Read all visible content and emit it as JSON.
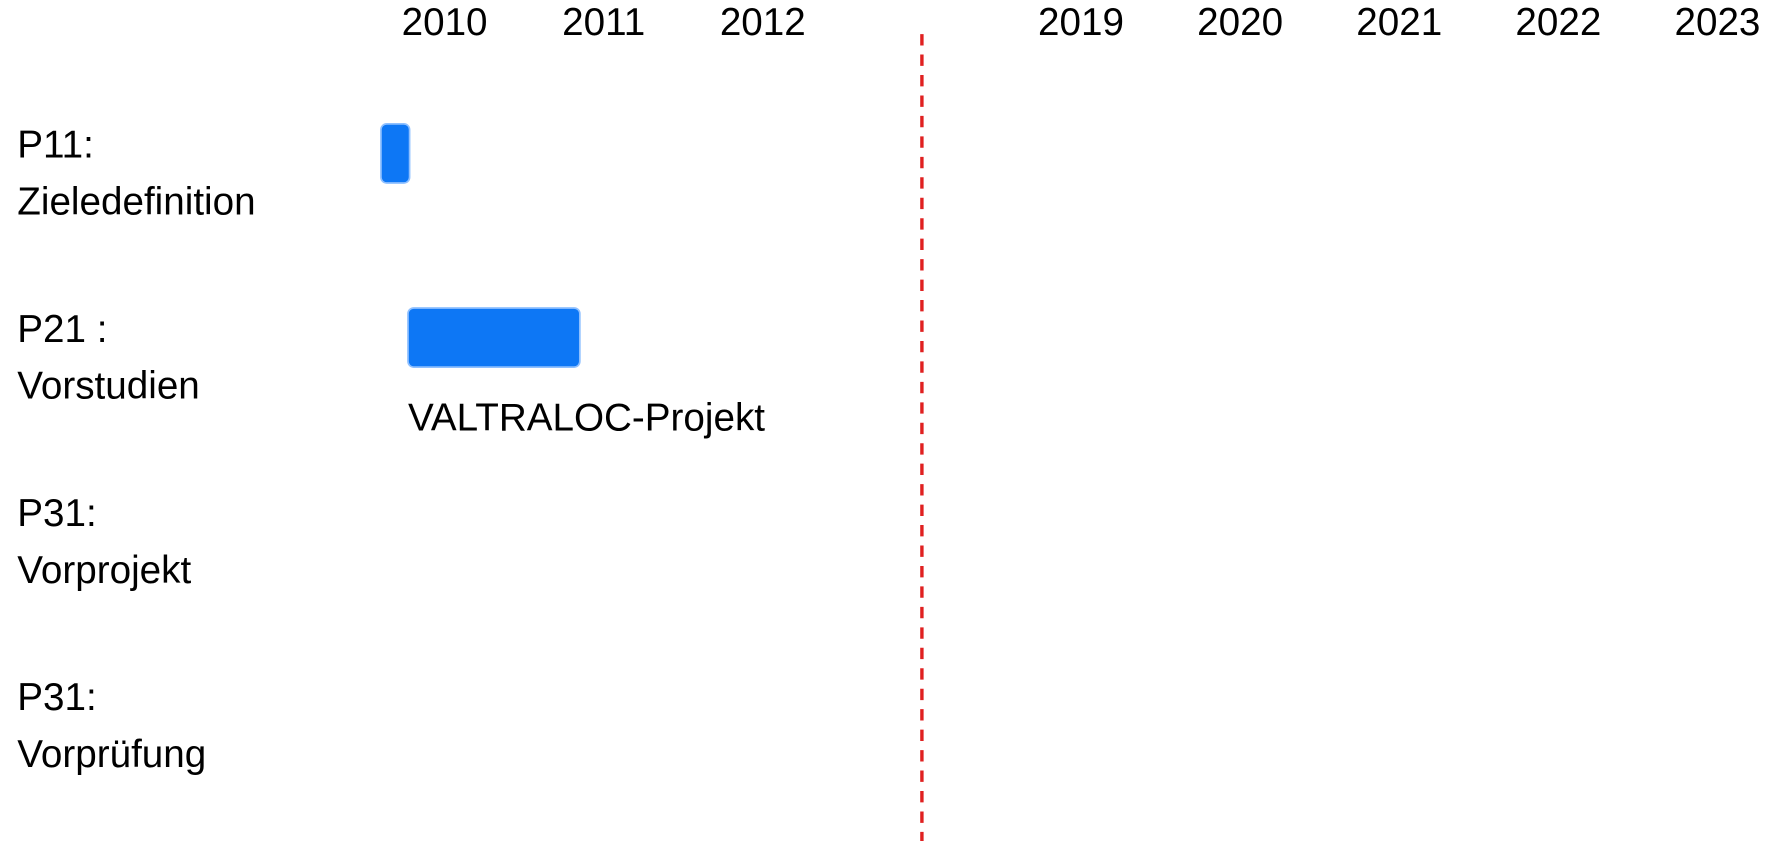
{
  "chart_data": {
    "type": "gantt",
    "categories": [
      [
        "P11:",
        "Zieledefinition"
      ],
      [
        "P21 :",
        "Vorstudien"
      ],
      [
        "P31:",
        "Vorprojekt"
      ],
      [
        "P31:",
        "Vorprüfung"
      ]
    ],
    "values": [
      [
        2009.6,
        2009.78
      ],
      [
        2009.77,
        2010.85
      ],
      null,
      null
    ],
    "color": "#0d77f5",
    "xlim": [
      2009.5,
      2023.5
    ],
    "xbreak": [
      2012.5,
      2018.5
    ],
    "xticks": [
      2010,
      2011,
      2012,
      2019,
      2020,
      2021,
      2022,
      2023
    ],
    "break_line_color": "#e02020",
    "annotations": [
      {
        "text": "VALTRALOC-Projekt",
        "row": 1
      }
    ]
  }
}
